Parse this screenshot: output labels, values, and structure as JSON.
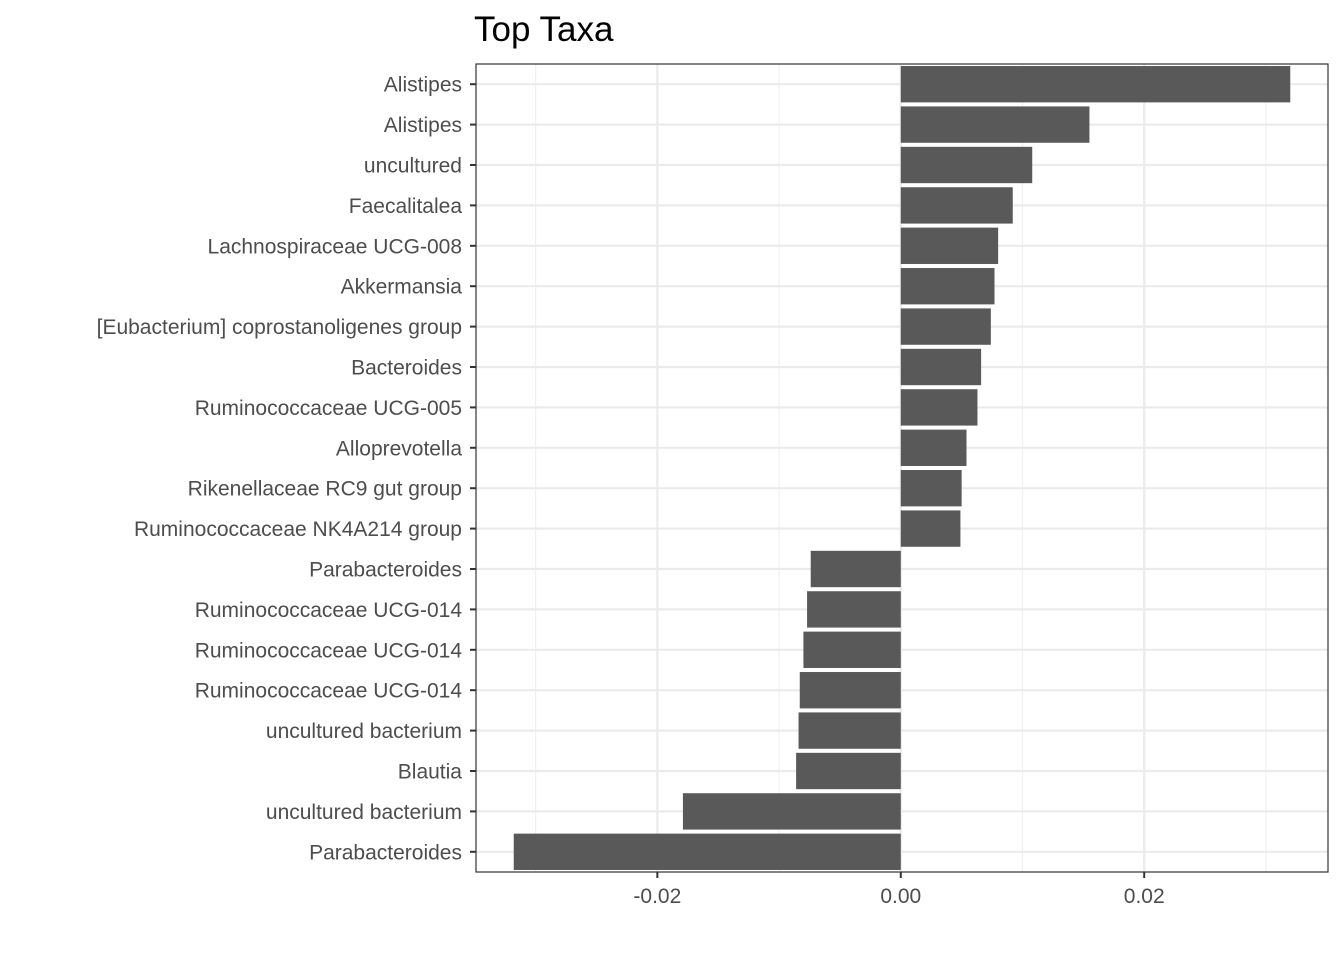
{
  "chart_data": {
    "type": "bar",
    "orientation": "horizontal",
    "title": "Top Taxa",
    "xlabel": "",
    "ylabel": "",
    "categories": [
      "Alistipes",
      "Alistipes",
      "uncultured",
      "Faecalitalea",
      "Lachnospiraceae UCG-008",
      "Akkermansia",
      "[Eubacterium] coprostanoligenes group",
      "Bacteroides",
      "Ruminococcaceae UCG-005",
      "Alloprevotella",
      "Rikenellaceae RC9 gut group",
      "Ruminococcaceae NK4A214 group",
      "Parabacteroides",
      "Ruminococcaceae UCG-014",
      "Ruminococcaceae UCG-014",
      "Ruminococcaceae UCG-014",
      "uncultured bacterium",
      "Blautia",
      "uncultured bacterium",
      "Parabacteroides"
    ],
    "values": [
      0.032,
      0.0155,
      0.0108,
      0.0092,
      0.008,
      0.0077,
      0.0074,
      0.0066,
      0.0063,
      0.0054,
      0.005,
      0.0049,
      -0.0074,
      -0.0077,
      -0.008,
      -0.0083,
      -0.0084,
      -0.0086,
      -0.0179,
      -0.0318
    ],
    "xlim": [
      -0.0349,
      0.0351
    ],
    "xticks": [
      -0.02,
      0.0,
      0.02
    ],
    "xtick_labels": [
      "-0.02",
      "0.00",
      "0.02"
    ],
    "grid": true,
    "theme": "bw",
    "bar_color": "#595959"
  }
}
